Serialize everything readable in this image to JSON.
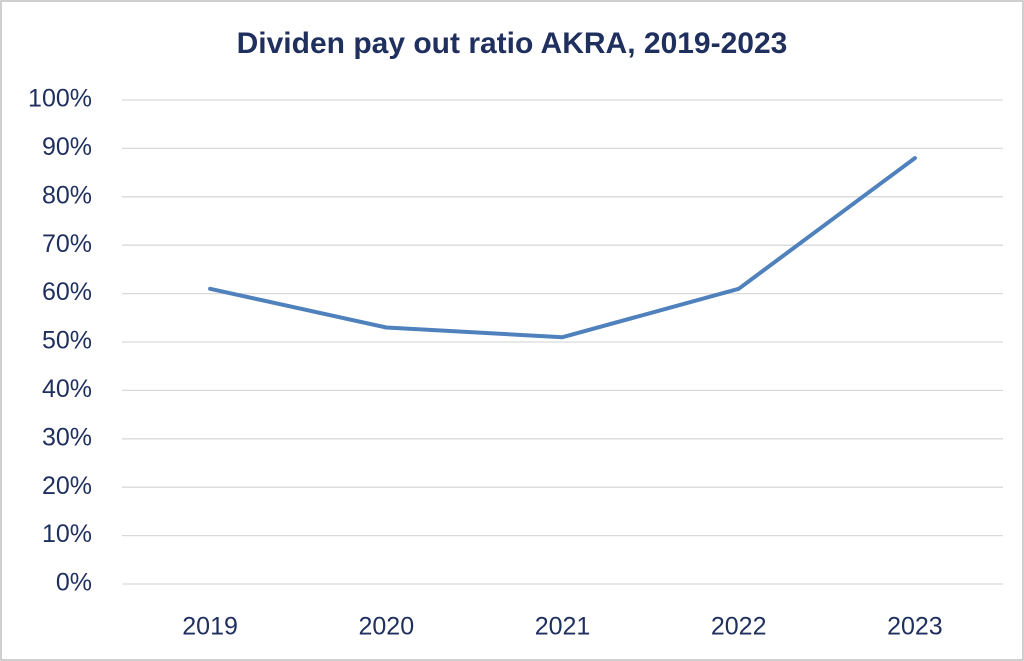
{
  "chart_data": {
    "type": "line",
    "title": "Dividen pay out ratio AKRA, 2019-2023",
    "categories": [
      "2019",
      "2020",
      "2021",
      "2022",
      "2023"
    ],
    "series": [
      {
        "name": "Dividen pay out ratio",
        "color": "#4f81bd",
        "values": [
          61,
          53,
          51,
          61,
          88
        ]
      }
    ],
    "ylim": [
      0,
      100
    ],
    "yticks": [
      {
        "value": 0,
        "label": "0%"
      },
      {
        "value": 10,
        "label": "10%"
      },
      {
        "value": 20,
        "label": "20%"
      },
      {
        "value": 30,
        "label": "30%"
      },
      {
        "value": 40,
        "label": "40%"
      },
      {
        "value": 50,
        "label": "50%"
      },
      {
        "value": 60,
        "label": "60%"
      },
      {
        "value": 70,
        "label": "70%"
      },
      {
        "value": 80,
        "label": "80%"
      },
      {
        "value": 90,
        "label": "90%"
      },
      {
        "value": 100,
        "label": "100%"
      }
    ],
    "grid": true
  }
}
